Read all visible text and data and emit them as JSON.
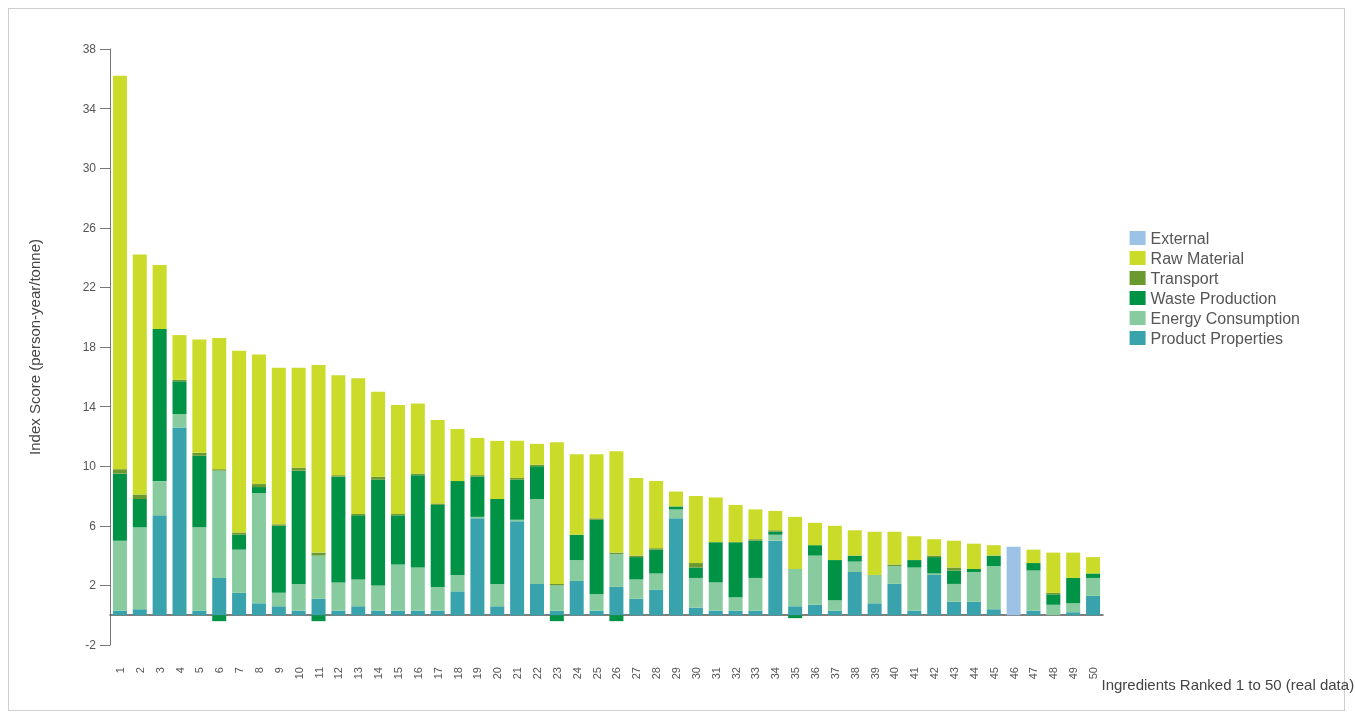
{
  "chart_data": {
    "type": "bar",
    "stacked": true,
    "xlabel": "Ingredients Ranked 1 to 50 (real data)",
    "ylabel": "Index Score (person-year/tonne)",
    "categories": [
      "1",
      "2",
      "3",
      "4",
      "5",
      "6",
      "7",
      "8",
      "9",
      "10",
      "11",
      "12",
      "13",
      "14",
      "15",
      "16",
      "17",
      "18",
      "19",
      "20",
      "21",
      "22",
      "23",
      "24",
      "25",
      "26",
      "27",
      "28",
      "29",
      "30",
      "31",
      "32",
      "33",
      "34",
      "35",
      "36",
      "37",
      "38",
      "39",
      "40",
      "41",
      "42",
      "43",
      "44",
      "45",
      "46",
      "47",
      "48",
      "49",
      "50"
    ],
    "ylim": [
      -2,
      38
    ],
    "yticks": [
      -2,
      2,
      6,
      10,
      14,
      18,
      22,
      26,
      30,
      34,
      38
    ],
    "grid": false,
    "legend": "right",
    "tick_labels": "y",
    "series": [
      {
        "name": "Product Properties",
        "color": "#38a3ac",
        "values": [
          0.3,
          0.4,
          6.7,
          12.6,
          0.3,
          2.5,
          1.5,
          0.8,
          0.6,
          0.3,
          1.1,
          0.3,
          0.6,
          0.3,
          0.3,
          0.3,
          0.3,
          1.6,
          6.5,
          0.6,
          6.3,
          2.1,
          0.3,
          2.3,
          0.3,
          1.9,
          1.1,
          1.7,
          6.5,
          0.5,
          0.3,
          0.3,
          0.3,
          5.0,
          0.6,
          0.7,
          0.3,
          2.9,
          0.8,
          2.1,
          0.3,
          2.7,
          0.9,
          0.9,
          0.4,
          null,
          0.3,
          null,
          0.2,
          1.3
        ]
      },
      {
        "name": "Energy Consumption",
        "color": "#87cb9f",
        "values": [
          4.7,
          5.5,
          2.3,
          0.9,
          5.6,
          7.2,
          2.9,
          7.4,
          0.9,
          1.8,
          2.9,
          1.9,
          1.8,
          1.7,
          3.1,
          2.9,
          1.6,
          1.1,
          0.1,
          1.5,
          0.1,
          5.7,
          1.7,
          1.4,
          1.1,
          2.2,
          1.3,
          1.1,
          0.6,
          2.0,
          1.9,
          0.9,
          2.2,
          0.4,
          2.5,
          3.3,
          0.7,
          0.7,
          1.9,
          1.2,
          2.9,
          0.1,
          1.2,
          2.0,
          2.9,
          null,
          2.7,
          0.7,
          0.6,
          1.2
        ]
      },
      {
        "name": "Waste Production",
        "color": "#009245",
        "values": [
          4.5,
          1.9,
          10.2,
          2.2,
          4.8,
          -0.4,
          1.0,
          0.4,
          4.5,
          7.6,
          -0.4,
          7.1,
          4.3,
          7.1,
          3.3,
          6.2,
          5.5,
          6.3,
          2.7,
          5.7,
          2.7,
          2.2,
          -0.4,
          1.7,
          5.0,
          -0.4,
          1.5,
          1.6,
          0.2,
          0.7,
          2.7,
          3.7,
          2.5,
          0.2,
          -0.2,
          0.7,
          2.7,
          0.4,
          null,
          null,
          0.5,
          1.1,
          0.9,
          0.2,
          0.7,
          null,
          0.5,
          0.7,
          1.7,
          0.3
        ]
      },
      {
        "name": "Transport",
        "color": "#6a9a2f",
        "values": [
          0.3,
          0.3,
          null,
          0.1,
          0.2,
          0.1,
          0.15,
          0.2,
          0.1,
          0.2,
          0.2,
          0.1,
          0.1,
          0.2,
          0.1,
          0.1,
          0.1,
          null,
          0.1,
          null,
          0.1,
          0.1,
          0.1,
          null,
          0.1,
          0.1,
          0.1,
          0.1,
          null,
          0.3,
          null,
          null,
          0.1,
          0.1,
          null,
          null,
          null,
          null,
          null,
          0.1,
          null,
          0.1,
          0.2,
          null,
          null,
          null,
          null,
          0.1,
          null,
          null
        ]
      },
      {
        "name": "Raw Material",
        "color": "#cbdb2a",
        "values": [
          26.4,
          16.1,
          4.3,
          3.0,
          7.6,
          8.8,
          12.2,
          8.7,
          10.5,
          6.7,
          12.6,
          6.7,
          9.1,
          5.7,
          7.3,
          4.7,
          5.6,
          3.5,
          2.5,
          3.9,
          2.5,
          1.4,
          9.5,
          5.4,
          4.3,
          6.8,
          5.2,
          4.5,
          1.0,
          4.5,
          3.0,
          2.5,
          2.0,
          1.3,
          3.5,
          1.5,
          2.3,
          1.7,
          2.9,
          2.2,
          1.6,
          1.1,
          1.8,
          1.7,
          0.7,
          null,
          0.9,
          2.7,
          1.7,
          1.1
        ]
      },
      {
        "name": "External",
        "color": "#9cc3e6",
        "values": [
          null,
          null,
          null,
          null,
          null,
          null,
          null,
          null,
          null,
          null,
          null,
          null,
          null,
          null,
          null,
          null,
          null,
          null,
          null,
          null,
          null,
          null,
          null,
          null,
          null,
          null,
          null,
          null,
          null,
          null,
          null,
          null,
          null,
          null,
          null,
          null,
          null,
          null,
          null,
          null,
          null,
          null,
          null,
          null,
          null,
          4.6,
          null,
          null,
          null,
          null
        ]
      }
    ]
  }
}
